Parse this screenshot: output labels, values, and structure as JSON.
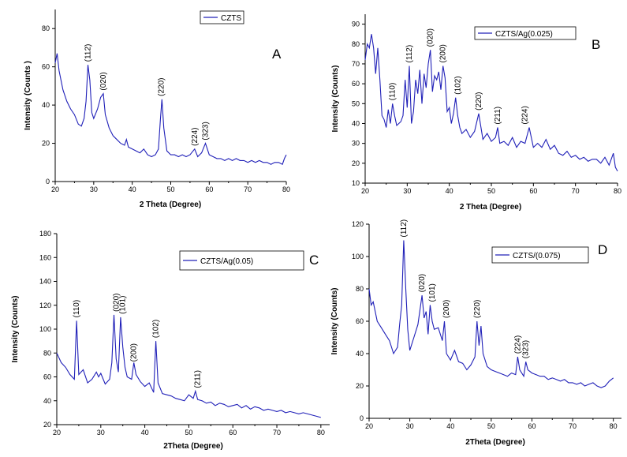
{
  "chart_data": [
    {
      "type": "line",
      "panel_label": "A",
      "legend": "CZTS",
      "xlabel": "2 Theta (Degree)",
      "ylabel": "Intensity (Counts )",
      "xlim": [
        20,
        80
      ],
      "ylim": [
        0,
        90
      ],
      "xticks": [
        20,
        30,
        40,
        50,
        60,
        70,
        80
      ],
      "yticks": [
        0,
        20,
        40,
        60,
        80
      ],
      "series_color": "#2020b8",
      "peaks": [
        {
          "label": "(112)",
          "x": 28.5,
          "y": 61
        },
        {
          "label": "(020)",
          "x": 32.5,
          "y": 46
        },
        {
          "label": "(220)",
          "x": 47.5,
          "y": 43
        },
        {
          "label": "(224)",
          "x": 56.2,
          "y": 17
        },
        {
          "label": "(323)",
          "x": 59.0,
          "y": 20
        }
      ],
      "series": [
        {
          "x": [
            20,
            20.5,
            21,
            22,
            23,
            24,
            25,
            26,
            26.8,
            27.5,
            28,
            28.5,
            29,
            29.5,
            30,
            31,
            31.8,
            32.5,
            33,
            34,
            35,
            36,
            37,
            38,
            38.5,
            39,
            40,
            41,
            42,
            43,
            44,
            45,
            46,
            46.8,
            47.3,
            47.7,
            48.2,
            49,
            50,
            51,
            52,
            53,
            54,
            55,
            56.2,
            57,
            58,
            59,
            60,
            61,
            62,
            63,
            64,
            65,
            66,
            67,
            68,
            69,
            70,
            71,
            72,
            73,
            74,
            75,
            76,
            77,
            78,
            79,
            79.5,
            80
          ],
          "y": [
            62,
            67,
            58,
            48,
            42,
            38,
            35,
            30,
            29,
            33,
            42,
            61,
            53,
            36,
            33,
            38,
            44,
            46,
            35,
            28,
            24,
            22,
            20,
            19,
            22,
            18,
            17,
            16,
            15,
            17,
            14,
            13,
            14,
            17,
            32,
            43,
            28,
            16,
            14,
            14,
            13,
            14,
            13,
            14,
            17,
            13,
            15,
            20,
            14,
            13,
            12,
            12,
            11,
            12,
            11,
            12,
            11,
            11,
            10,
            11,
            10,
            11,
            10,
            10,
            9,
            10,
            10,
            9,
            12,
            14
          ]
        }
      ]
    },
    {
      "type": "line",
      "panel_label": "B",
      "legend": "CZTS/Ag(0.025)",
      "xlabel": "2 Theta (Degree)",
      "ylabel": "Intensity (Counts)",
      "xlim": [
        20,
        80
      ],
      "ylim": [
        10,
        95
      ],
      "xticks": [
        20,
        30,
        40,
        50,
        60,
        70,
        80
      ],
      "yticks": [
        10,
        20,
        30,
        40,
        50,
        60,
        70,
        80,
        90
      ],
      "series_color": "#2020b8",
      "peaks": [
        {
          "label": "(110)",
          "x": 26.5,
          "y": 50
        },
        {
          "label": "(112)",
          "x": 30.5,
          "y": 69
        },
        {
          "label": "(020)",
          "x": 35.5,
          "y": 77
        },
        {
          "label": "(200)",
          "x": 38.5,
          "y": 69
        },
        {
          "label": "(102)",
          "x": 42.0,
          "y": 53
        },
        {
          "label": "(220)",
          "x": 47.0,
          "y": 45
        },
        {
          "label": "(211)",
          "x": 51.5,
          "y": 38
        },
        {
          "label": "(224)",
          "x": 58.0,
          "y": 38
        }
      ],
      "series": [
        {
          "x": [
            20,
            20.5,
            21,
            21.5,
            22,
            22.5,
            23,
            23.5,
            24,
            24.5,
            25,
            25.5,
            26,
            26.5,
            27,
            27.5,
            28,
            28.5,
            29,
            29.5,
            30,
            30.5,
            31,
            31.5,
            32,
            32.5,
            33,
            33.5,
            34,
            34.5,
            35,
            35.5,
            36,
            36.5,
            37,
            37.5,
            38,
            38.5,
            39,
            39.5,
            40,
            40.5,
            41,
            41.5,
            42,
            42.5,
            43,
            44,
            45,
            46,
            47,
            48,
            49,
            50,
            51,
            51.5,
            52,
            53,
            54,
            55,
            56,
            57,
            58,
            59,
            60,
            61,
            62,
            63,
            64,
            65,
            66,
            67,
            68,
            69,
            70,
            71,
            72,
            73,
            74,
            75,
            76,
            77,
            78,
            79,
            79.5,
            80
          ],
          "y": [
            72,
            80,
            78,
            85,
            78,
            65,
            78,
            62,
            44,
            42,
            38,
            47,
            40,
            50,
            44,
            39,
            40,
            41,
            44,
            62,
            48,
            69,
            40,
            46,
            62,
            55,
            67,
            50,
            65,
            58,
            70,
            77,
            56,
            64,
            62,
            66,
            57,
            69,
            63,
            46,
            48,
            40,
            45,
            53,
            44,
            38,
            35,
            37,
            33,
            36,
            45,
            32,
            35,
            31,
            33,
            38,
            30,
            31,
            29,
            33,
            28,
            31,
            30,
            38,
            28,
            30,
            28,
            32,
            27,
            29,
            25,
            24,
            26,
            23,
            24,
            22,
            23,
            21,
            22,
            22,
            20,
            23,
            19,
            25,
            18,
            16
          ]
        }
      ]
    },
    {
      "type": "line",
      "panel_label": "C",
      "legend": "CZTS/Ag(0.05)",
      "xlabel": "2Theta (Degree)",
      "ylabel": "Intensity (Counts)",
      "xlim": [
        20,
        82
      ],
      "ylim": [
        20,
        180
      ],
      "xticks": [
        20,
        30,
        40,
        50,
        60,
        70,
        80
      ],
      "yticks": [
        20,
        40,
        60,
        80,
        100,
        120,
        140,
        160,
        180
      ],
      "series_color": "#2020b8",
      "peaks": [
        {
          "label": "(110)",
          "x": 24.5,
          "y": 107
        },
        {
          "label": "(020)",
          "x": 33.5,
          "y": 112
        },
        {
          "label": "(101)",
          "x": 35.0,
          "y": 110
        },
        {
          "label": "(200)",
          "x": 37.5,
          "y": 70
        },
        {
          "label": "(102)",
          "x": 42.5,
          "y": 90
        },
        {
          "label": "(211)",
          "x": 52.0,
          "y": 48
        }
      ],
      "series": [
        {
          "x": [
            20,
            21,
            22,
            23,
            24,
            24.5,
            25,
            26,
            27,
            28,
            29,
            29.5,
            30,
            31,
            32,
            32.5,
            33,
            33.5,
            34,
            34.5,
            35,
            35.5,
            36,
            37,
            37.5,
            38,
            39,
            40,
            41,
            42,
            42.5,
            43,
            44,
            45,
            46,
            47,
            48,
            49,
            50,
            51,
            51.5,
            52,
            53,
            54,
            55,
            56,
            57,
            58,
            59,
            60,
            61,
            62,
            63,
            64,
            65,
            66,
            67,
            68,
            69,
            70,
            71,
            72,
            73,
            74,
            75,
            76,
            77,
            78,
            79,
            80
          ],
          "y": [
            80,
            72,
            68,
            62,
            58,
            107,
            62,
            66,
            55,
            58,
            64,
            60,
            63,
            54,
            58,
            72,
            112,
            75,
            64,
            110,
            85,
            68,
            60,
            58,
            72,
            62,
            56,
            52,
            55,
            47,
            90,
            55,
            46,
            45,
            44,
            42,
            41,
            40,
            45,
            42,
            48,
            41,
            40,
            38,
            39,
            36,
            38,
            37,
            35,
            36,
            37,
            34,
            36,
            33,
            35,
            34,
            32,
            33,
            32,
            31,
            32,
            30,
            31,
            30,
            29,
            30,
            29,
            28,
            27,
            26
          ]
        }
      ]
    },
    {
      "type": "line",
      "panel_label": "D",
      "legend": "CZTS/(0.075)",
      "xlabel": "2Theta (Degree)",
      "ylabel": "Intensity (Counts)",
      "xlim": [
        20,
        82
      ],
      "ylim": [
        0,
        120
      ],
      "xticks": [
        20,
        30,
        40,
        50,
        60,
        70,
        80
      ],
      "yticks": [
        0,
        20,
        40,
        60,
        80,
        100,
        120
      ],
      "series_color": "#2020b8",
      "peaks": [
        {
          "label": "(112)",
          "x": 28.5,
          "y": 110
        },
        {
          "label": "(020)",
          "x": 33.0,
          "y": 76
        },
        {
          "label": "(101)",
          "x": 35.5,
          "y": 70
        },
        {
          "label": "(200)",
          "x": 39.0,
          "y": 60
        },
        {
          "label": "(220)",
          "x": 46.5,
          "y": 60
        },
        {
          "label": "(224)",
          "x": 56.5,
          "y": 38
        },
        {
          "label": "(323)",
          "x": 58.5,
          "y": 35
        }
      ],
      "series": [
        {
          "x": [
            20,
            20.5,
            21,
            22,
            23,
            24,
            25,
            26,
            27,
            27.5,
            28,
            28.5,
            29,
            29.5,
            30,
            31,
            32,
            33,
            33.5,
            34,
            34.5,
            35,
            35.5,
            36,
            37,
            38,
            38.5,
            39,
            40,
            41,
            42,
            43,
            44,
            45,
            46,
            46.5,
            47,
            47.5,
            48,
            49,
            50,
            51,
            52,
            53,
            54,
            55,
            56,
            56.5,
            57,
            58,
            58.5,
            59,
            60,
            61,
            62,
            63,
            64,
            65,
            66,
            67,
            68,
            69,
            70,
            71,
            72,
            73,
            74,
            75,
            76,
            77,
            78,
            79,
            80
          ],
          "y": [
            80,
            70,
            72,
            60,
            56,
            52,
            48,
            40,
            44,
            58,
            70,
            110,
            80,
            55,
            42,
            50,
            58,
            76,
            62,
            66,
            52,
            70,
            60,
            55,
            56,
            48,
            60,
            40,
            36,
            42,
            35,
            34,
            30,
            33,
            38,
            60,
            45,
            57,
            40,
            32,
            30,
            29,
            28,
            27,
            26,
            28,
            27,
            38,
            30,
            26,
            35,
            30,
            28,
            27,
            26,
            26,
            24,
            25,
            24,
            23,
            24,
            22,
            22,
            21,
            22,
            20,
            21,
            22,
            20,
            19,
            20,
            23,
            25
          ]
        }
      ]
    }
  ]
}
